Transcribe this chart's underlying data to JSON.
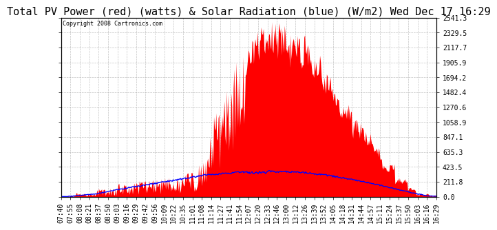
{
  "title": "Total PV Power (red) (watts) & Solar Radiation (blue) (W/m2) Wed Dec 17 16:29",
  "copyright": "Copyright 2008 Cartronics.com",
  "bg_color": "#ffffff",
  "plot_bg_color": "#ffffff",
  "grid_color": "#aaaaaa",
  "y_ticks": [
    0.0,
    211.8,
    423.5,
    635.3,
    847.1,
    1058.9,
    1270.6,
    1482.4,
    1694.2,
    1905.9,
    2117.7,
    2329.5,
    2541.3
  ],
  "red_color": "#ff0000",
  "blue_color": "#0000ff",
  "title_fontsize": 11,
  "tick_fontsize": 7,
  "ymax": 2541.3,
  "x_labels": [
    "07:40",
    "07:55",
    "08:08",
    "08:21",
    "08:37",
    "08:50",
    "09:03",
    "09:16",
    "09:29",
    "09:42",
    "09:56",
    "10:09",
    "10:22",
    "10:35",
    "11:01",
    "11:08",
    "11:14",
    "11:27",
    "11:41",
    "11:54",
    "12:07",
    "12:20",
    "12:33",
    "12:46",
    "13:00",
    "13:12",
    "13:26",
    "13:39",
    "13:52",
    "14:05",
    "14:18",
    "14:31",
    "14:44",
    "14:57",
    "15:11",
    "15:24",
    "15:37",
    "15:50",
    "16:03",
    "16:16",
    "16:29"
  ]
}
